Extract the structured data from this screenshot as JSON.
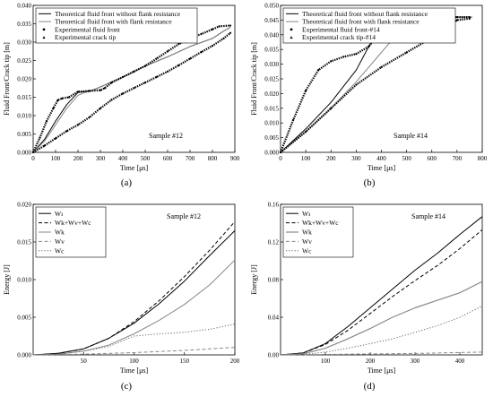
{
  "chart_data": [
    {
      "type": "line",
      "panel_label": "(a)",
      "xlabel": "Time [μs]",
      "ylabel": "Fluid Front/Crack tip [m]",
      "xlim": [
        0,
        900
      ],
      "ylim": [
        0,
        0.04
      ],
      "xticks": [
        "0",
        "100",
        "200",
        "300",
        "400",
        "500",
        "600",
        "700",
        "800",
        "900"
      ],
      "yticks": [
        "0.000",
        "0.005",
        "0.010",
        "0.015",
        "0.020",
        "0.025",
        "0.030",
        "0.035",
        "0.040"
      ],
      "annotation": "Sample #12",
      "legend_position": "top-left",
      "series": [
        {
          "name": "Theoretical fluid front without flank resistance",
          "style": "solid",
          "color": "#000000",
          "width": 1.0,
          "x": [
            0,
            50,
            100,
            150,
            200,
            230,
            260,
            300,
            400,
            500,
            600,
            700,
            800,
            850,
            880
          ],
          "y": [
            0,
            0.0035,
            0.0085,
            0.013,
            0.0163,
            0.0165,
            0.0168,
            0.0178,
            0.0205,
            0.0235,
            0.026,
            0.0288,
            0.031,
            0.033,
            0.034
          ]
        },
        {
          "name": "Theoretical fluid front with flank resistance",
          "style": "solid",
          "color": "#888888",
          "width": 1.0,
          "x": [
            0,
            50,
            100,
            150,
            200,
            230,
            260,
            300,
            400,
            500,
            600,
            700,
            800,
            850,
            880
          ],
          "y": [
            0,
            0.003,
            0.0075,
            0.012,
            0.0155,
            0.0163,
            0.0167,
            0.0178,
            0.0205,
            0.0235,
            0.026,
            0.0288,
            0.031,
            0.033,
            0.034
          ]
        },
        {
          "name": "Experimental fluid front",
          "style": "dots",
          "color": "#000000",
          "width": 2.2,
          "x": [
            0,
            50,
            100,
            150,
            200,
            250,
            300,
            350,
            400,
            450,
            500,
            550,
            600,
            650,
            700,
            750,
            800,
            850,
            880
          ],
          "y": [
            0,
            0.0018,
            0.0038,
            0.0058,
            0.0075,
            0.0095,
            0.012,
            0.0143,
            0.016,
            0.0175,
            0.019,
            0.0205,
            0.022,
            0.0237,
            0.0255,
            0.0273,
            0.029,
            0.031,
            0.0325
          ]
        },
        {
          "name": "Experimental crack tip",
          "style": "dots",
          "color": "#000000",
          "width": 2.2,
          "x": [
            0,
            30,
            60,
            90,
            110,
            130,
            160,
            200,
            250,
            300,
            320,
            350,
            400,
            450,
            500,
            550,
            600,
            650,
            700,
            750,
            800,
            830,
            880
          ],
          "y": [
            0,
            0.004,
            0.0085,
            0.012,
            0.0142,
            0.0147,
            0.015,
            0.0165,
            0.0167,
            0.0169,
            0.0175,
            0.019,
            0.0205,
            0.022,
            0.0235,
            0.0255,
            0.0275,
            0.0295,
            0.031,
            0.0322,
            0.0335,
            0.0343,
            0.0345
          ]
        }
      ]
    },
    {
      "type": "line",
      "panel_label": "(b)",
      "xlabel": "Time [μs]",
      "ylabel": "Fluid Front/Crack tip [m]",
      "xlim": [
        0,
        800
      ],
      "ylim": [
        0,
        0.05
      ],
      "xticks": [
        "0",
        "100",
        "200",
        "300",
        "400",
        "500",
        "600",
        "700",
        "800"
      ],
      "yticks": [
        "0.000",
        "0.005",
        "0.010",
        "0.015",
        "0.020",
        "0.025",
        "0.030",
        "0.035",
        "0.040",
        "0.045",
        "0.050"
      ],
      "annotation": "Sample #14",
      "legend_position": "top-left",
      "series": [
        {
          "name": "Theoretical fluid front without flank resistance",
          "style": "solid",
          "color": "#000000",
          "width": 1.0,
          "x": [
            0,
            100,
            200,
            300,
            350,
            400,
            440,
            500,
            600,
            700,
            760
          ],
          "y": [
            0,
            0.008,
            0.017,
            0.028,
            0.036,
            0.043,
            0.0455,
            0.046,
            0.046,
            0.046,
            0.046
          ]
        },
        {
          "name": "Theoretical fluid front with flank resistance",
          "style": "solid",
          "color": "#888888",
          "width": 1.0,
          "x": [
            0,
            100,
            200,
            300,
            400,
            450,
            500,
            520,
            600,
            700,
            760
          ],
          "y": [
            0,
            0.007,
            0.015,
            0.024,
            0.034,
            0.039,
            0.0445,
            0.0455,
            0.0458,
            0.046,
            0.046
          ]
        },
        {
          "name": "Experimental fluid front-#14",
          "style": "dots",
          "color": "#000000",
          "width": 2.2,
          "x": [
            0,
            100,
            200,
            300,
            400,
            500,
            600,
            650,
            700,
            750
          ],
          "y": [
            0,
            0.007,
            0.015,
            0.023,
            0.029,
            0.034,
            0.039,
            0.042,
            0.045,
            0.0455
          ]
        },
        {
          "name": "Experimental crack tip-#14",
          "style": "dots",
          "color": "#000000",
          "width": 2.2,
          "x": [
            0,
            50,
            100,
            150,
            200,
            250,
            300,
            350,
            400,
            450,
            500,
            600,
            700,
            750
          ],
          "y": [
            0,
            0.011,
            0.021,
            0.028,
            0.031,
            0.0325,
            0.0335,
            0.036,
            0.0415,
            0.0445,
            0.0455,
            0.046,
            0.046,
            0.046
          ]
        }
      ]
    },
    {
      "type": "line",
      "panel_label": "(c)",
      "xlabel": "Time [μs]",
      "ylabel": "Energy [J]",
      "xlim": [
        0,
        200
      ],
      "ylim": [
        0,
        0.02
      ],
      "xticks": [
        "50",
        "100",
        "150",
        "200"
      ],
      "yticks": [
        "0.000",
        "0.005",
        "0.010",
        "0.015",
        "0.020"
      ],
      "annotation": "Sample #12",
      "legend_position": "top-left",
      "series": [
        {
          "name": "Wı",
          "style": "solid",
          "color": "#000000",
          "width": 1.0,
          "x": [
            0,
            25,
            50,
            75,
            100,
            125,
            150,
            175,
            200
          ],
          "y": [
            0,
            0.0002,
            0.0008,
            0.0022,
            0.0042,
            0.0068,
            0.0098,
            0.0132,
            0.0165
          ]
        },
        {
          "name": "Wk+Wv+Wc",
          "style": "dashed",
          "color": "#000000",
          "width": 1.0,
          "x": [
            0,
            25,
            50,
            75,
            100,
            125,
            150,
            175,
            200
          ],
          "y": [
            0,
            0.0002,
            0.0008,
            0.0022,
            0.0044,
            0.0072,
            0.0104,
            0.0139,
            0.0177
          ]
        },
        {
          "name": "Wk",
          "style": "solid",
          "color": "#888888",
          "width": 1.0,
          "x": [
            0,
            25,
            50,
            75,
            100,
            125,
            150,
            175,
            200
          ],
          "y": [
            0,
            0.0001,
            0.0005,
            0.0013,
            0.0028,
            0.0046,
            0.0067,
            0.0093,
            0.0126
          ]
        },
        {
          "name": "Wv",
          "style": "dashed",
          "color": "#888888",
          "width": 1.0,
          "x": [
            0,
            50,
            100,
            150,
            200
          ],
          "y": [
            0,
            0.0001,
            0.0003,
            0.0006,
            0.001
          ]
        },
        {
          "name": "Wc",
          "style": "dotted",
          "color": "#666666",
          "width": 1.0,
          "x": [
            0,
            25,
            50,
            75,
            100,
            125,
            150,
            175,
            200
          ],
          "y": [
            0,
            0.0001,
            0.0005,
            0.0011,
            0.0025,
            0.0028,
            0.003,
            0.0034,
            0.0041
          ]
        }
      ]
    },
    {
      "type": "line",
      "panel_label": "(d)",
      "xlabel": "Time [μs]",
      "ylabel": "Energy [J]",
      "xlim": [
        0,
        450
      ],
      "ylim": [
        0,
        0.16
      ],
      "xticks": [
        "100",
        "200",
        "300",
        "400"
      ],
      "yticks": [
        "0.00",
        "0.04",
        "0.08",
        "0.12",
        "0.16"
      ],
      "annotation": "Sample #14",
      "legend_position": "top-left",
      "series": [
        {
          "name": "Wı",
          "style": "solid",
          "color": "#000000",
          "width": 1.0,
          "x": [
            0,
            50,
            100,
            150,
            200,
            250,
            300,
            350,
            400,
            450
          ],
          "y": [
            0,
            0.002,
            0.012,
            0.03,
            0.05,
            0.07,
            0.09,
            0.108,
            0.128,
            0.147
          ]
        },
        {
          "name": "Wk+Wv+Wc",
          "style": "dashed",
          "color": "#000000",
          "width": 1.0,
          "x": [
            0,
            50,
            100,
            150,
            200,
            250,
            300,
            350,
            400,
            450
          ],
          "y": [
            0,
            0.002,
            0.011,
            0.026,
            0.044,
            0.062,
            0.079,
            0.095,
            0.113,
            0.133
          ]
        },
        {
          "name": "Wk",
          "style": "solid",
          "color": "#888888",
          "width": 1.2,
          "x": [
            0,
            50,
            100,
            150,
            200,
            250,
            300,
            350,
            400,
            450
          ],
          "y": [
            0,
            0.001,
            0.007,
            0.017,
            0.028,
            0.04,
            0.05,
            0.058,
            0.066,
            0.078
          ]
        },
        {
          "name": "Wv",
          "style": "dashed",
          "color": "#888888",
          "width": 1.0,
          "x": [
            0,
            100,
            200,
            300,
            400,
            450
          ],
          "y": [
            0,
            0.0005,
            0.001,
            0.0015,
            0.0025,
            0.003
          ]
        },
        {
          "name": "Wc",
          "style": "dotted",
          "color": "#666666",
          "width": 1.0,
          "x": [
            0,
            50,
            100,
            150,
            200,
            250,
            300,
            350,
            400,
            450
          ],
          "y": [
            0,
            0.0005,
            0.003,
            0.007,
            0.012,
            0.017,
            0.024,
            0.031,
            0.04,
            0.052
          ]
        }
      ]
    }
  ]
}
